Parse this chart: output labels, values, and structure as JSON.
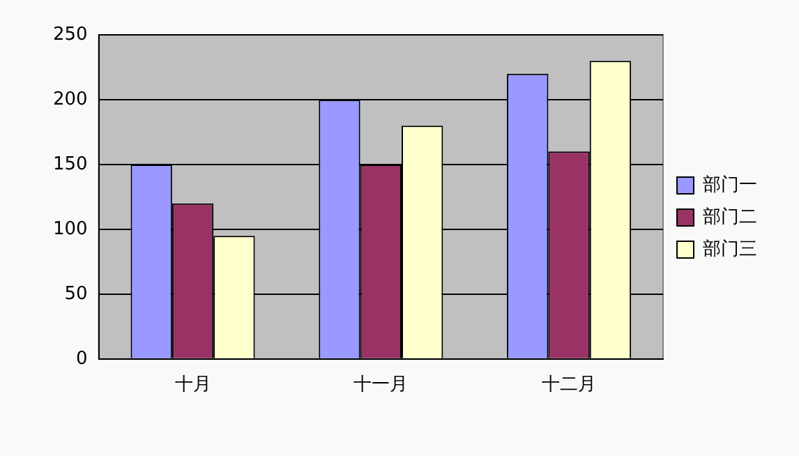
{
  "chart_data": {
    "type": "bar",
    "categories": [
      "十月",
      "十一月",
      "十二月"
    ],
    "series": [
      {
        "name": "部门一",
        "color": "#9999ff",
        "values": [
          150,
          200,
          220
        ]
      },
      {
        "name": "部门二",
        "color": "#993366",
        "values": [
          120,
          150,
          160
        ]
      },
      {
        "name": "部门三",
        "color": "#ffffcc",
        "values": [
          95,
          180,
          230
        ]
      }
    ],
    "ylim": [
      0,
      250
    ],
    "yticks": [
      0,
      50,
      100,
      150,
      200,
      250
    ],
    "grid": "y",
    "legend": "right"
  }
}
